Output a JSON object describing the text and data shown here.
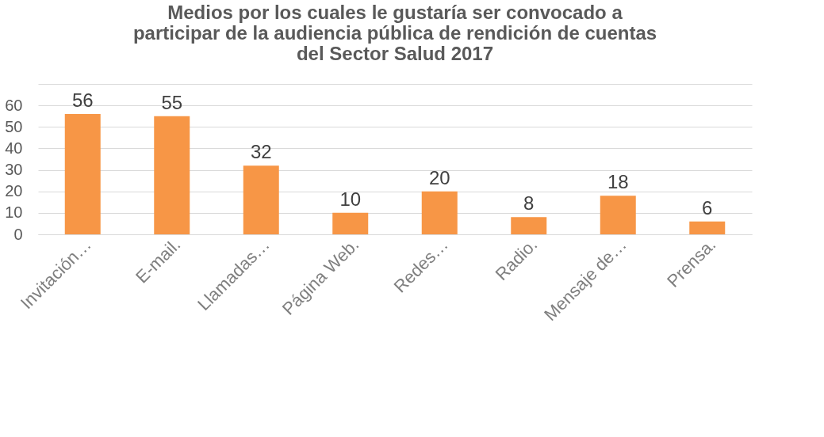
{
  "chart_data": {
    "type": "bar",
    "title": [
      "Medios por los cuales le gustaría ser convocado a",
      "participar de la audiencia pública de rendición de cuentas",
      "del Sector Salud 2017"
    ],
    "categories": [
      "Invitación…",
      "E-mail.",
      "Llamadas…",
      "Página Web.",
      "Redes…",
      "Radio.",
      "Mensaje de…",
      "Prensa."
    ],
    "values": [
      56,
      55,
      32,
      10,
      20,
      8,
      18,
      6
    ],
    "color": "#f79646",
    "data_labels": true,
    "grid": "y",
    "ylim": [
      0,
      70
    ],
    "yticks": [
      0,
      10,
      20,
      30,
      40,
      50,
      60,
      {
        "value": 70,
        "label": null
      }
    ]
  }
}
